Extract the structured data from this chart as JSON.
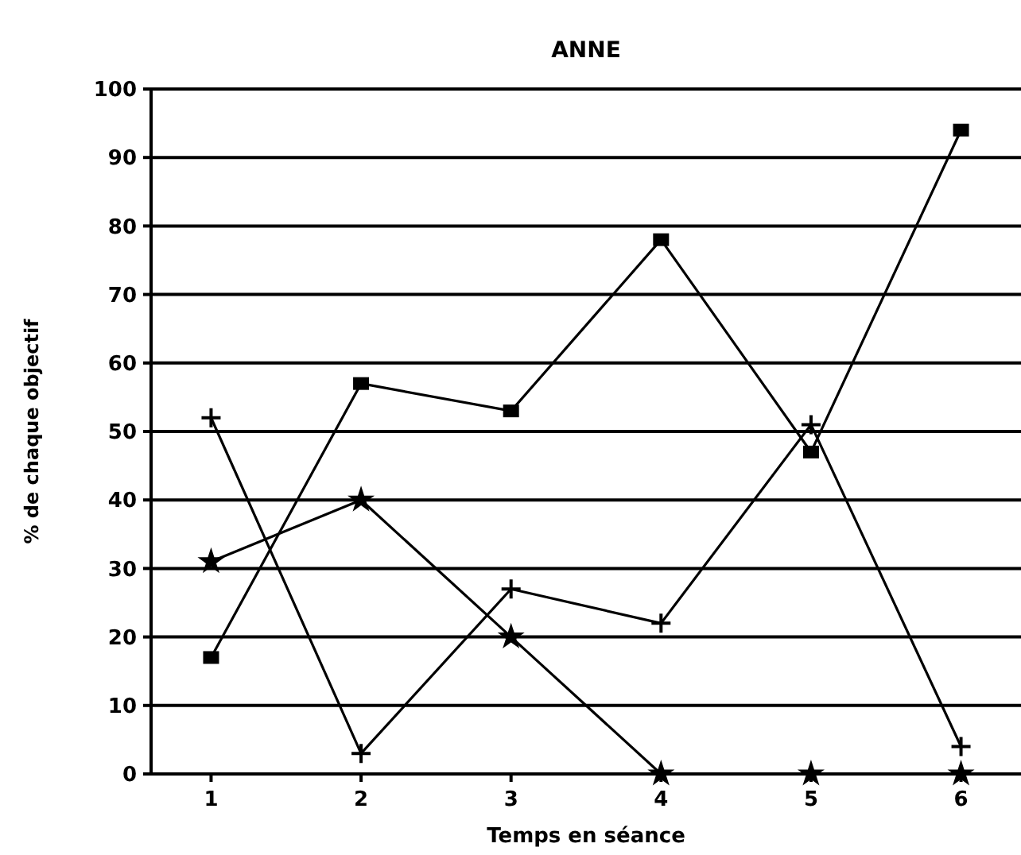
{
  "chart_data": {
    "type": "line",
    "title": "ANNE",
    "xlabel": "Temps en séance",
    "ylabel": "% de chaque objectif",
    "categories": [
      "1",
      "2",
      "3",
      "4",
      "5",
      "6"
    ],
    "series": [
      {
        "color": "#000000",
        "marker": "square",
        "values": [
          17,
          57,
          53,
          78,
          47,
          94
        ]
      },
      {
        "color": "#000000",
        "marker": "cross",
        "values": [
          52,
          3,
          27,
          22,
          51,
          4
        ]
      },
      {
        "color": "#000000",
        "marker": "star",
        "values": [
          31,
          40,
          20,
          0,
          0,
          0
        ]
      }
    ],
    "ylim": [
      0,
      100
    ],
    "yticks": [
      0,
      10,
      20,
      30,
      40,
      50,
      60,
      70,
      80,
      90,
      100
    ],
    "grid": "y"
  }
}
